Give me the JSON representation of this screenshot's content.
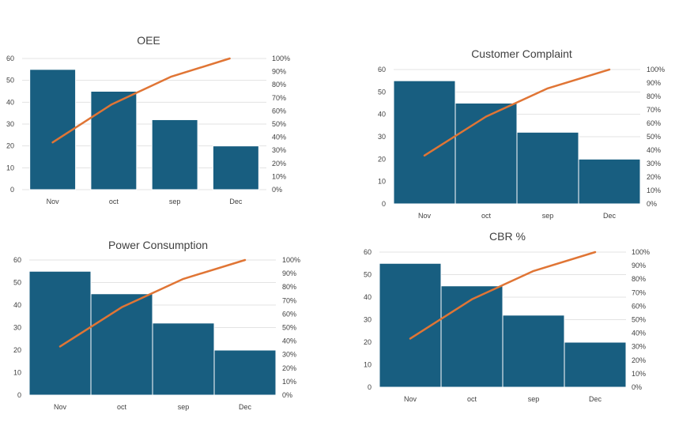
{
  "colors": {
    "bar": "#185e80",
    "line": "#e07535"
  },
  "chart_data": [
    {
      "type": "bar",
      "title": "OEE",
      "categories": [
        "Nov",
        "oct",
        "sep",
        "Dec"
      ],
      "values": [
        55,
        45,
        32,
        20
      ],
      "cumulative_percent": [
        36,
        65,
        86,
        100
      ],
      "ylim": [
        0,
        60
      ],
      "y_ticks": [
        "0",
        "10",
        "20",
        "30",
        "40",
        "50",
        "60"
      ],
      "y2lim": [
        0,
        100
      ],
      "y2_ticks": [
        "0%",
        "10%",
        "20%",
        "30%",
        "40%",
        "50%",
        "60%",
        "70%",
        "80%",
        "90%",
        "100%"
      ],
      "grid": true,
      "legend": "none"
    },
    {
      "type": "bar",
      "title": "Customer Complaint",
      "categories": [
        "Nov",
        "oct",
        "sep",
        "Dec"
      ],
      "values": [
        55,
        45,
        32,
        20
      ],
      "cumulative_percent": [
        36,
        65,
        86,
        100
      ],
      "ylim": [
        0,
        60
      ],
      "y_ticks": [
        "0",
        "10",
        "20",
        "30",
        "40",
        "50",
        "60"
      ],
      "y2lim": [
        0,
        100
      ],
      "y2_ticks": [
        "0%",
        "10%",
        "20%",
        "30%",
        "40%",
        "50%",
        "60%",
        "70%",
        "80%",
        "90%",
        "100%"
      ],
      "grid": true,
      "legend": "none"
    },
    {
      "type": "bar",
      "title": "Power Consumption",
      "categories": [
        "Nov",
        "oct",
        "sep",
        "Dec"
      ],
      "values": [
        55,
        45,
        32,
        20
      ],
      "cumulative_percent": [
        36,
        65,
        86,
        100
      ],
      "ylim": [
        0,
        60
      ],
      "y_ticks": [
        "0",
        "10",
        "20",
        "30",
        "40",
        "50",
        "60"
      ],
      "y2lim": [
        0,
        100
      ],
      "y2_ticks": [
        "0%",
        "10%",
        "20%",
        "30%",
        "40%",
        "50%",
        "60%",
        "70%",
        "80%",
        "90%",
        "100%"
      ],
      "grid": true,
      "legend": "none"
    },
    {
      "type": "bar",
      "title": "CBR %",
      "categories": [
        "Nov",
        "oct",
        "sep",
        "Dec"
      ],
      "values": [
        55,
        45,
        32,
        20
      ],
      "cumulative_percent": [
        36,
        65,
        86,
        100
      ],
      "ylim": [
        0,
        60
      ],
      "y_ticks": [
        "0",
        "10",
        "20",
        "30",
        "40",
        "50",
        "60"
      ],
      "y2lim": [
        0,
        100
      ],
      "y2_ticks": [
        "0%",
        "10%",
        "20%",
        "30%",
        "40%",
        "50%",
        "60%",
        "70%",
        "80%",
        "90%",
        "100%"
      ],
      "grid": true,
      "legend": "none"
    }
  ]
}
